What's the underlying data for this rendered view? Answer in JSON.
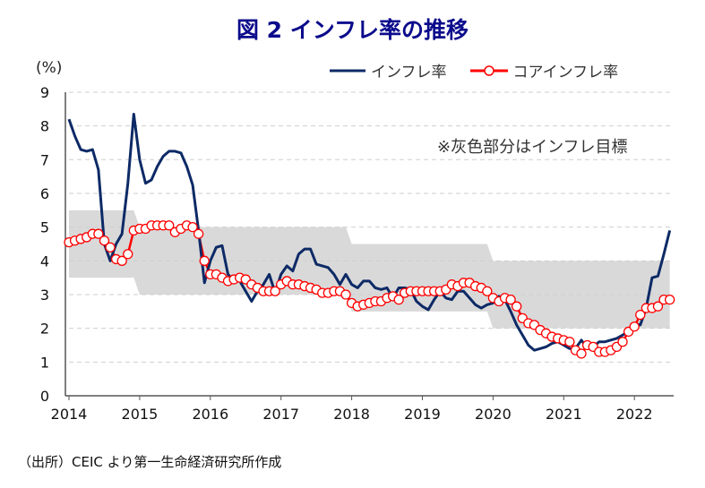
{
  "chart_data": {
    "type": "line",
    "title": "図 2  インフレ率の推移",
    "ylabel": "(%)",
    "ylim": [
      0,
      9
    ],
    "yticks": [
      "0",
      "1",
      "2",
      "3",
      "4",
      "5",
      "6",
      "7",
      "8",
      "9"
    ],
    "xticks": [
      "2014",
      "2015",
      "2016",
      "2017",
      "2018",
      "2019",
      "2020",
      "2021",
      "2022"
    ],
    "x_start": "2014-01",
    "x_frequency": "monthly",
    "grid": "horizontal dashed",
    "legend_placement": "top-right",
    "annotation": "※灰色部分はインフレ目標",
    "target_band": [
      {
        "years": "2014",
        "low": 3.5,
        "high": 5.5
      },
      {
        "years": "2015-2017",
        "low": 3,
        "high": 5
      },
      {
        "years": "2018-2019",
        "low": 2.5,
        "high": 4.5
      },
      {
        "years": "2020-2022",
        "low": 2,
        "high": 4
      }
    ],
    "series": [
      {
        "name": "インフレ率",
        "color": "#0d2a66",
        "values": [
          8.2,
          7.7,
          7.3,
          7.25,
          7.3,
          6.7,
          4.5,
          4.0,
          4.5,
          4.8,
          6.3,
          8.35,
          7.0,
          6.3,
          6.4,
          6.8,
          7.1,
          7.25,
          7.25,
          7.2,
          6.8,
          6.25,
          4.9,
          3.35,
          4.0,
          4.4,
          4.45,
          3.6,
          3.4,
          3.4,
          3.1,
          2.8,
          3.1,
          3.3,
          3.6,
          3.05,
          3.6,
          3.85,
          3.7,
          4.2,
          4.35,
          4.35,
          3.9,
          3.85,
          3.8,
          3.6,
          3.3,
          3.6,
          3.3,
          3.2,
          3.4,
          3.4,
          3.2,
          3.15,
          3.2,
          2.9,
          3.2,
          3.2,
          3.15,
          2.8,
          2.65,
          2.55,
          2.85,
          3.1,
          2.9,
          2.85,
          3.1,
          3.1,
          2.9,
          2.7,
          2.6,
          2.7,
          2.75,
          2.95,
          2.85,
          2.5,
          2.1,
          1.8,
          1.5,
          1.35,
          1.4,
          1.45,
          1.55,
          1.6,
          1.5,
          1.4,
          1.4,
          1.65,
          1.4,
          1.45,
          1.6,
          1.6,
          1.65,
          1.7,
          1.8,
          1.9,
          2.15,
          2.1,
          2.6,
          3.5,
          3.55,
          4.2,
          4.9
        ]
      },
      {
        "name": "コアインフレ率",
        "color": "#ff0000",
        "values": [
          4.55,
          4.6,
          4.65,
          4.7,
          4.8,
          4.8,
          4.6,
          4.4,
          4.05,
          4.0,
          4.2,
          4.9,
          4.95,
          4.95,
          5.05,
          5.05,
          5.05,
          5.05,
          4.85,
          4.95,
          5.05,
          5.0,
          4.8,
          4.0,
          3.6,
          3.6,
          3.5,
          3.4,
          3.45,
          3.5,
          3.45,
          3.3,
          3.2,
          3.1,
          3.1,
          3.1,
          3.3,
          3.4,
          3.3,
          3.3,
          3.25,
          3.2,
          3.15,
          3.05,
          3.05,
          3.1,
          3.1,
          3.0,
          2.75,
          2.65,
          2.7,
          2.75,
          2.8,
          2.8,
          2.9,
          2.95,
          2.85,
          3.05,
          3.1,
          3.1,
          3.1,
          3.1,
          3.1,
          3.1,
          3.15,
          3.3,
          3.25,
          3.35,
          3.35,
          3.25,
          3.2,
          3.1,
          2.9,
          2.8,
          2.9,
          2.85,
          2.65,
          2.3,
          2.15,
          2.1,
          1.95,
          1.85,
          1.75,
          1.7,
          1.65,
          1.6,
          1.35,
          1.25,
          1.5,
          1.45,
          1.3,
          1.3,
          1.35,
          1.45,
          1.6,
          1.9,
          2.05,
          2.4,
          2.6,
          2.6,
          2.65,
          2.85,
          2.85
        ]
      }
    ]
  },
  "source": "（出所）CEIC より第一生命経済研究所作成",
  "colors": {
    "title": "#0b0b8c",
    "band": "#d9d9d9"
  }
}
